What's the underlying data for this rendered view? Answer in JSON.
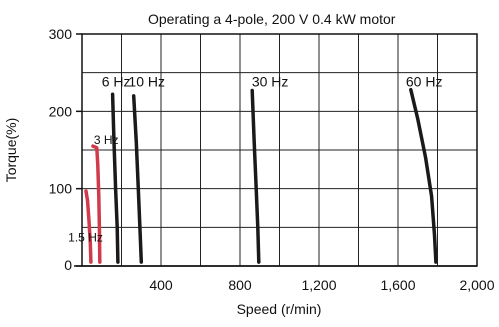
{
  "chart_data": {
    "type": "line",
    "title": "Operating a 4-pole, 200 V 0.4 kW motor",
    "xlabel": "Speed (r/min)",
    "ylabel": "Torque(%)",
    "xlim": [
      0,
      2000
    ],
    "ylim": [
      0,
      300
    ],
    "x_ticks": [
      {
        "value": 400,
        "label": "400"
      },
      {
        "value": 800,
        "label": "800"
      },
      {
        "value": 1200,
        "label": "1,200"
      },
      {
        "value": 1600,
        "label": "1,600"
      },
      {
        "value": 2000,
        "label": "2,000"
      }
    ],
    "y_ticks": [
      {
        "value": 0,
        "label": "0"
      },
      {
        "value": 100,
        "label": "100"
      },
      {
        "value": 200,
        "label": "200"
      },
      {
        "value": 300,
        "label": "300"
      }
    ],
    "grid": true,
    "x_grid_step": 200,
    "y_grid_step": 50,
    "series": [
      {
        "name": "1.5 Hz",
        "color": "#d03a4a",
        "points": [
          [
            20,
            97
          ],
          [
            28,
            85
          ],
          [
            35,
            60
          ],
          [
            42,
            30
          ],
          [
            45,
            5
          ]
        ]
      },
      {
        "name": "3 Hz",
        "color": "#d03a4a",
        "points": [
          [
            55,
            155
          ],
          [
            75,
            153
          ],
          [
            80,
            130
          ],
          [
            85,
            90
          ],
          [
            88,
            50
          ],
          [
            90,
            5
          ]
        ]
      },
      {
        "name": "6 Hz",
        "color": "#1a1a1a",
        "points": [
          [
            155,
            222
          ],
          [
            162,
            160
          ],
          [
            170,
            100
          ],
          [
            178,
            50
          ],
          [
            182,
            5
          ]
        ]
      },
      {
        "name": "10 Hz",
        "color": "#1a1a1a",
        "points": [
          [
            262,
            220
          ],
          [
            275,
            160
          ],
          [
            285,
            100
          ],
          [
            293,
            50
          ],
          [
            300,
            5
          ]
        ]
      },
      {
        "name": "30 Hz",
        "color": "#1a1a1a",
        "points": [
          [
            862,
            227
          ],
          [
            872,
            160
          ],
          [
            882,
            100
          ],
          [
            890,
            50
          ],
          [
            895,
            5
          ]
        ]
      },
      {
        "name": "60 Hz",
        "color": "#1a1a1a",
        "points": [
          [
            1665,
            228
          ],
          [
            1700,
            190
          ],
          [
            1740,
            140
          ],
          [
            1770,
            90
          ],
          [
            1785,
            40
          ],
          [
            1792,
            5
          ]
        ]
      }
    ],
    "series_labels": [
      {
        "text": "6 Hz",
        "x": 100,
        "y": 232
      },
      {
        "text": "10 Hz",
        "x": 235,
        "y": 232
      },
      {
        "text": "30 Hz",
        "x": 860,
        "y": 232
      },
      {
        "text": "60 Hz",
        "x": 1640,
        "y": 232
      },
      {
        "text": "3 Hz",
        "x": 60,
        "y": 158
      },
      {
        "text": "1.5 Hz",
        "x": -70,
        "y": 32
      }
    ]
  }
}
